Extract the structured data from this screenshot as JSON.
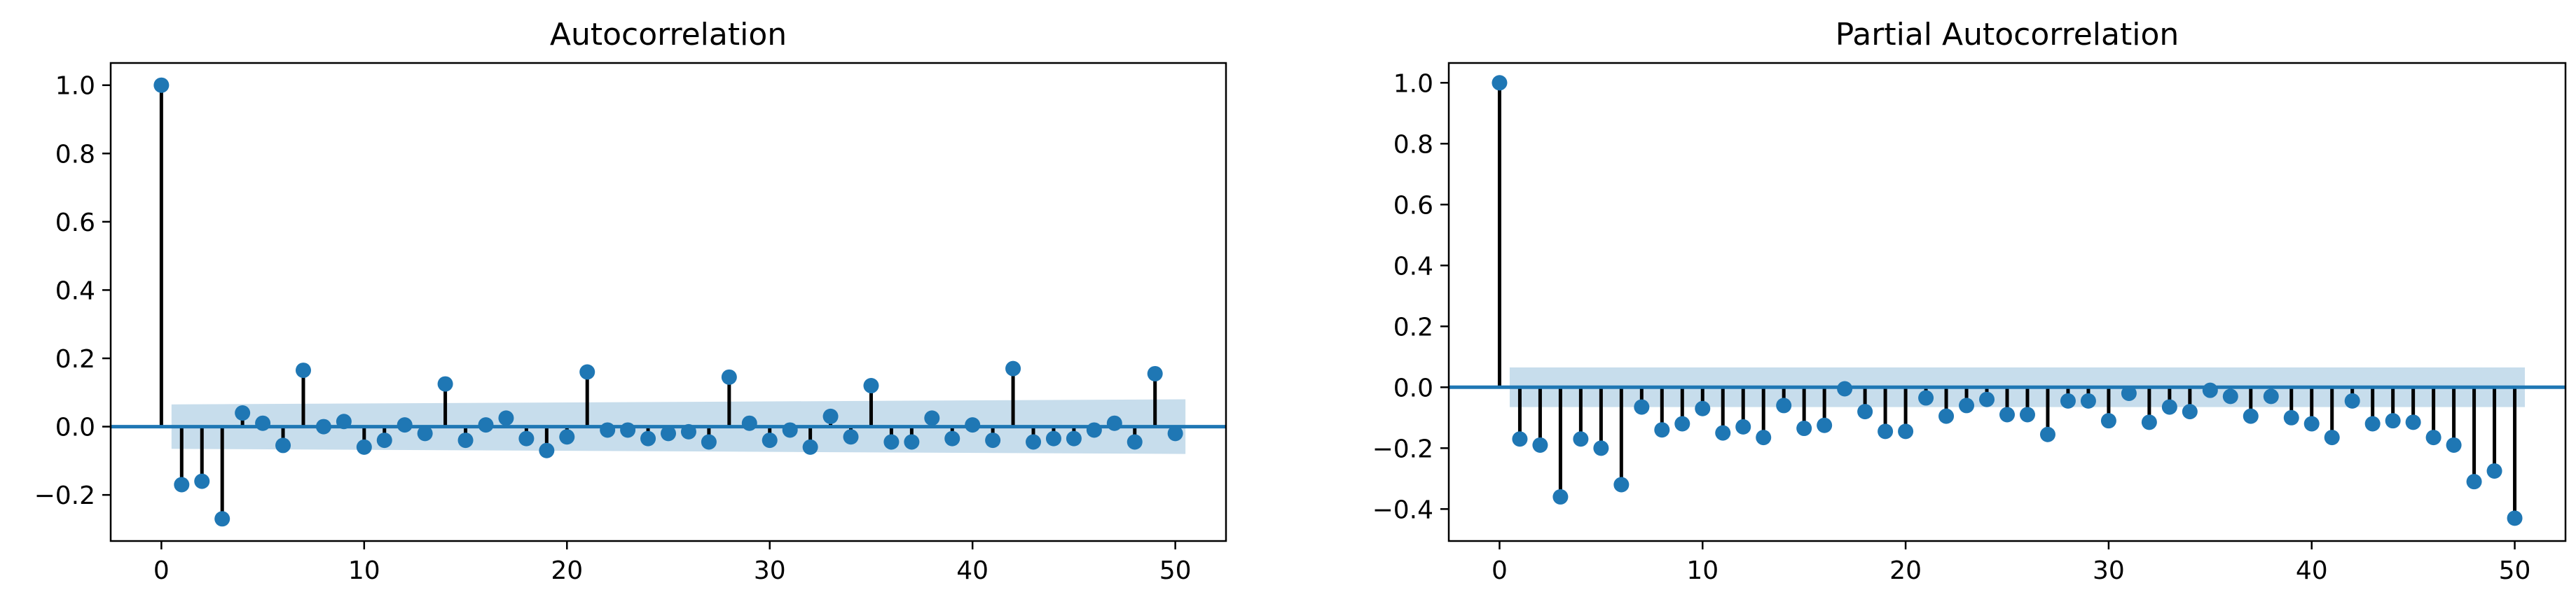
{
  "chart_data": [
    {
      "type": "stem",
      "title": "Autocorrelation",
      "xlim": [
        -2.5,
        52.5
      ],
      "ylim": [
        -0.335,
        1.065
      ],
      "xticks": [
        0,
        10,
        20,
        30,
        40,
        50
      ],
      "xtick_labels": [
        "0",
        "10",
        "20",
        "30",
        "40",
        "50"
      ],
      "yticks": [
        -0.2,
        0.0,
        0.2,
        0.4,
        0.6,
        0.8,
        1.0
      ],
      "ytick_labels": [
        "−0.2",
        "0.0",
        "0.2",
        "0.4",
        "0.6",
        "0.8",
        "1.0"
      ],
      "confidence_band": {
        "x_start": 0.5,
        "x_end": 50.5,
        "half_width_start": 0.065,
        "half_width_end": 0.08
      },
      "x": [
        0,
        1,
        2,
        3,
        4,
        5,
        6,
        7,
        8,
        9,
        10,
        11,
        12,
        13,
        14,
        15,
        16,
        17,
        18,
        19,
        20,
        21,
        22,
        23,
        24,
        25,
        26,
        27,
        28,
        29,
        30,
        31,
        32,
        33,
        34,
        35,
        36,
        37,
        38,
        39,
        40,
        41,
        42,
        43,
        44,
        45,
        46,
        47,
        48,
        49,
        50
      ],
      "values": [
        1.0,
        -0.17,
        -0.16,
        -0.27,
        0.04,
        0.01,
        -0.055,
        0.165,
        0.0,
        0.015,
        -0.06,
        -0.04,
        0.005,
        -0.02,
        0.125,
        -0.04,
        0.005,
        0.025,
        -0.035,
        -0.07,
        -0.03,
        0.16,
        -0.01,
        -0.01,
        -0.035,
        -0.02,
        -0.015,
        -0.045,
        0.145,
        0.01,
        -0.04,
        -0.01,
        -0.06,
        0.03,
        -0.03,
        0.12,
        -0.045,
        -0.045,
        0.025,
        -0.035,
        0.005,
        -0.04,
        0.17,
        -0.045,
        -0.035,
        -0.035,
        -0.01,
        0.01,
        -0.045,
        0.155,
        -0.02
      ]
    },
    {
      "type": "stem",
      "title": "Partial Autocorrelation",
      "xlim": [
        -2.5,
        52.5
      ],
      "ylim": [
        -0.505,
        1.065
      ],
      "xticks": [
        0,
        10,
        20,
        30,
        40,
        50
      ],
      "xtick_labels": [
        "0",
        "10",
        "20",
        "30",
        "40",
        "50"
      ],
      "yticks": [
        -0.4,
        -0.2,
        0.0,
        0.2,
        0.4,
        0.6,
        0.8,
        1.0
      ],
      "ytick_labels": [
        "−0.4",
        "−0.2",
        "0.0",
        "0.2",
        "0.4",
        "0.6",
        "0.8",
        "1.0"
      ],
      "confidence_band": {
        "x_start": 0.5,
        "x_end": 50.5,
        "half_width_start": 0.065,
        "half_width_end": 0.065
      },
      "x": [
        0,
        1,
        2,
        3,
        4,
        5,
        6,
        7,
        8,
        9,
        10,
        11,
        12,
        13,
        14,
        15,
        16,
        17,
        18,
        19,
        20,
        21,
        22,
        23,
        24,
        25,
        26,
        27,
        28,
        29,
        30,
        31,
        32,
        33,
        34,
        35,
        36,
        37,
        38,
        39,
        40,
        41,
        42,
        43,
        44,
        45,
        46,
        47,
        48,
        49,
        50
      ],
      "values": [
        1.0,
        -0.17,
        -0.19,
        -0.36,
        -0.17,
        -0.2,
        -0.32,
        -0.065,
        -0.14,
        -0.12,
        -0.07,
        -0.15,
        -0.13,
        -0.165,
        -0.06,
        -0.135,
        -0.125,
        -0.005,
        -0.08,
        -0.145,
        -0.145,
        -0.035,
        -0.095,
        -0.06,
        -0.04,
        -0.09,
        -0.09,
        -0.155,
        -0.045,
        -0.045,
        -0.11,
        -0.02,
        -0.115,
        -0.065,
        -0.08,
        -0.01,
        -0.03,
        -0.095,
        -0.03,
        -0.1,
        -0.12,
        -0.165,
        -0.045,
        -0.12,
        -0.11,
        -0.115,
        -0.165,
        -0.19,
        -0.31,
        -0.275,
        -0.43
      ]
    }
  ],
  "colors": {
    "marker": "#1f77b4",
    "stem": "#000000",
    "baseline": "#1f77b4",
    "band": "#1f77b4"
  }
}
